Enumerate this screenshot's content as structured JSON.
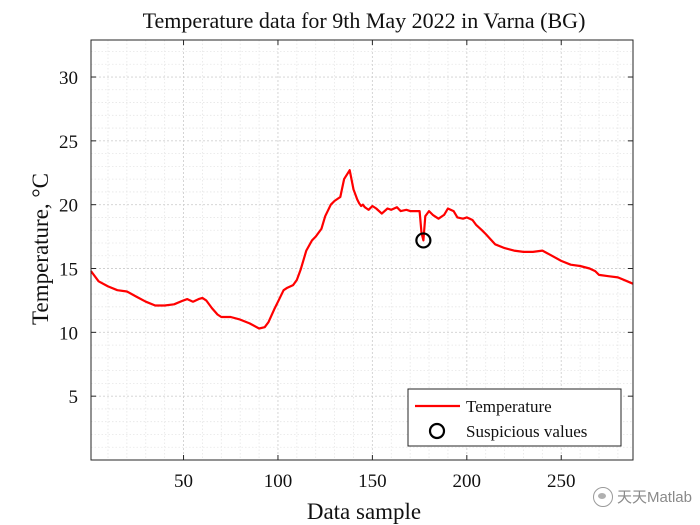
{
  "chart_data": {
    "type": "line",
    "title": "Temperature data for 9th May 2022 in Varna (BG)",
    "xlabel": "Data sample",
    "ylabel": "Temperature, °C",
    "xlim": [
      1,
      288
    ],
    "ylim": [
      0,
      32.9
    ],
    "xticks": [
      50,
      100,
      150,
      200,
      250
    ],
    "yticks": [
      5,
      10,
      15,
      20,
      25,
      30
    ],
    "grid": true,
    "minor_grid": true,
    "legend_position": "bottom-right",
    "series": [
      {
        "name": "Temperature",
        "color": "#ff0000",
        "x": [
          1,
          5,
          10,
          15,
          20,
          25,
          30,
          35,
          40,
          45,
          50,
          52,
          55,
          58,
          60,
          62,
          65,
          68,
          70,
          75,
          80,
          85,
          90,
          93,
          95,
          98,
          100,
          103,
          105,
          108,
          110,
          112,
          115,
          118,
          120,
          123,
          125,
          128,
          130,
          133,
          135,
          138,
          140,
          142,
          143,
          144,
          145,
          146,
          147,
          148,
          150,
          152,
          155,
          158,
          160,
          163,
          165,
          168,
          170,
          172,
          175,
          176,
          177,
          178,
          179,
          180,
          182,
          185,
          188,
          190,
          193,
          195,
          198,
          200,
          203,
          205,
          208,
          210,
          215,
          220,
          225,
          230,
          235,
          240,
          245,
          250,
          255,
          260,
          265,
          268,
          270,
          275,
          280,
          285,
          288
        ],
        "y": [
          14.8,
          14.0,
          13.6,
          13.3,
          13.2,
          12.8,
          12.4,
          12.1,
          12.1,
          12.2,
          12.5,
          12.6,
          12.4,
          12.6,
          12.7,
          12.5,
          11.9,
          11.4,
          11.2,
          11.2,
          11.0,
          10.7,
          10.3,
          10.4,
          10.8,
          11.8,
          12.4,
          13.3,
          13.5,
          13.7,
          14.1,
          14.9,
          16.4,
          17.2,
          17.5,
          18.1,
          19.1,
          20.0,
          20.3,
          20.6,
          22.0,
          22.7,
          21.2,
          20.4,
          20.1,
          19.9,
          20.0,
          19.8,
          19.7,
          19.6,
          19.9,
          19.7,
          19.3,
          19.7,
          19.6,
          19.8,
          19.5,
          19.6,
          19.5,
          19.5,
          19.5,
          17.8,
          17.2,
          19.1,
          19.3,
          19.5,
          19.2,
          18.9,
          19.2,
          19.7,
          19.5,
          19.0,
          18.9,
          19.0,
          18.8,
          18.4,
          18.0,
          17.7,
          16.9,
          16.6,
          16.4,
          16.3,
          16.3,
          16.4,
          16.0,
          15.6,
          15.3,
          15.2,
          15.0,
          14.8,
          14.5,
          14.4,
          14.3,
          14.0,
          13.8
        ]
      },
      {
        "name": "Suspicious values",
        "color": "#000000",
        "marker": "circle",
        "x": [
          177
        ],
        "y": [
          17.2
        ]
      }
    ]
  },
  "watermark": {
    "text": "天天Matlab",
    "icon": "wechat-icon"
  }
}
